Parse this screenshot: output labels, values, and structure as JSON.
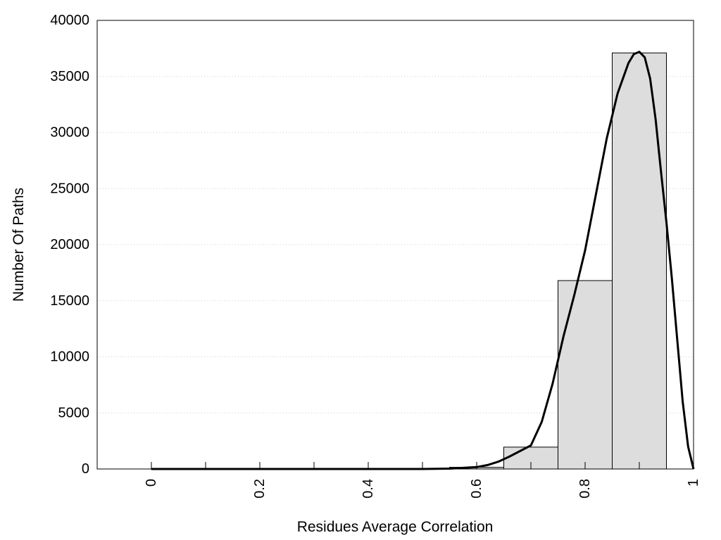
{
  "chart_data": {
    "type": "bar",
    "xlabel": "Residues Average Correlation",
    "ylabel": "Number Of Paths",
    "xlim": [
      -0.1,
      1.0
    ],
    "ylim": [
      0,
      40000
    ],
    "x_ticks": [
      "0",
      "0.2",
      "0.4",
      "0.6",
      "0.8",
      "1"
    ],
    "x_tick_values": [
      0,
      0.2,
      0.4,
      0.6,
      0.8,
      1.0
    ],
    "x_minor_tick_values": [
      0.1,
      0.3,
      0.5,
      0.7,
      0.9
    ],
    "y_ticks": [
      "0",
      "5000",
      "10000",
      "15000",
      "20000",
      "25000",
      "30000",
      "35000",
      "40000"
    ],
    "y_tick_values": [
      0,
      5000,
      10000,
      15000,
      20000,
      25000,
      30000,
      35000,
      40000
    ],
    "x_tick_rotation": "vertical",
    "grid": "horizontal dotted",
    "bar_color": "#dddddd",
    "curve_color": "#000000",
    "bars": [
      {
        "x0": 0.0,
        "x1": 0.5,
        "value": 0
      },
      {
        "x0": 0.5,
        "x1": 0.55,
        "value": 30
      },
      {
        "x0": 0.55,
        "x1": 0.65,
        "value": 150
      },
      {
        "x0": 0.65,
        "x1": 0.75,
        "value": 1950
      },
      {
        "x0": 0.75,
        "x1": 0.85,
        "value": 16800
      },
      {
        "x0": 0.85,
        "x1": 0.95,
        "value": 37100
      }
    ],
    "curve": {
      "x": [
        0.0,
        0.5,
        0.55,
        0.6,
        0.62,
        0.64,
        0.66,
        0.68,
        0.7,
        0.72,
        0.74,
        0.76,
        0.78,
        0.8,
        0.82,
        0.84,
        0.86,
        0.88,
        0.89,
        0.9,
        0.91,
        0.92,
        0.93,
        0.94,
        0.95,
        0.96,
        0.97,
        0.98,
        0.99,
        1.0
      ],
      "y": [
        0,
        0,
        30,
        170,
        350,
        650,
        1100,
        1600,
        2100,
        4200,
        7600,
        11800,
        15500,
        19500,
        24500,
        29500,
        33500,
        36200,
        37000,
        37200,
        36700,
        34800,
        31200,
        26500,
        22000,
        17000,
        11500,
        6000,
        2000,
        0
      ]
    }
  }
}
